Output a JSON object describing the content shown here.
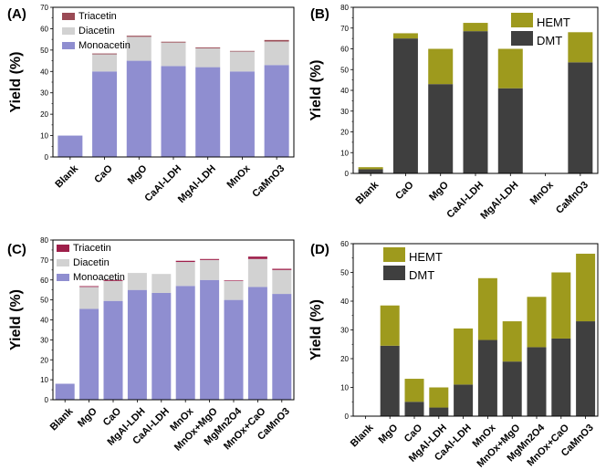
{
  "chart_data": [
    {
      "id": "A",
      "panel_label": "(A)",
      "type": "bar",
      "stacked": true,
      "ylabel": "Yield (%)",
      "ylim": [
        0,
        70
      ],
      "yticks": [
        0,
        10,
        20,
        30,
        40,
        50,
        60,
        70
      ],
      "categories": [
        "Blank",
        "CaO",
        "MgO",
        "CaAl-LDH",
        "MgAl-LDH",
        "MnOx",
        "CaMnO3"
      ],
      "legend_position": "top-left",
      "legend": [
        "Triacetin",
        "Diacetin",
        "Monoacetin"
      ],
      "series": [
        {
          "name": "Monoacetin",
          "color": "#8f8ed0",
          "values": [
            10,
            40,
            45,
            42.5,
            42,
            40,
            43
          ]
        },
        {
          "name": "Diacetin",
          "color": "#d2d2d2",
          "values": [
            0,
            8,
            11.2,
            11,
            8.8,
            9.3,
            11
          ]
        },
        {
          "name": "Triacetin",
          "color": "#9a4a55",
          "values": [
            0,
            0.4,
            0.5,
            0.4,
            0.4,
            0.3,
            0.7
          ]
        }
      ]
    },
    {
      "id": "B",
      "panel_label": "(B)",
      "type": "bar",
      "stacked": true,
      "ylabel": "Yield (%)",
      "ylim": [
        0,
        80
      ],
      "yticks": [
        0,
        10,
        20,
        30,
        40,
        50,
        60,
        70,
        80
      ],
      "categories": [
        "Blank",
        "CaO",
        "MgO",
        "CaAl-LDH",
        "MgAl-LDH",
        "MnOx",
        "CaMnO3"
      ],
      "legend_position": "top-right",
      "legend": [
        "HEMT",
        "DMT"
      ],
      "series": [
        {
          "name": "DMT",
          "color": "#3f3f3f",
          "values": [
            2,
            65,
            43,
            68.5,
            41,
            0,
            53.5
          ]
        },
        {
          "name": "HEMT",
          "color": "#9e9a1d",
          "values": [
            1,
            2.5,
            17,
            4,
            19,
            0,
            14.5
          ]
        }
      ]
    },
    {
      "id": "C",
      "panel_label": "(C)",
      "type": "bar",
      "stacked": true,
      "ylabel": "Yield (%)",
      "ylim": [
        0,
        80
      ],
      "yticks": [
        0,
        10,
        20,
        30,
        40,
        50,
        60,
        70,
        80
      ],
      "categories": [
        "Blank",
        "MgO",
        "CaO",
        "MgAl-LDH",
        "CaAl-LDH",
        "MnOx",
        "MnOx+MgO",
        "MgMn2O4",
        "MnOx+CaO",
        "CaMnO3"
      ],
      "legend_position": "top-left",
      "legend": [
        "Triacetin",
        "Diacetin",
        "Monoacetin"
      ],
      "series": [
        {
          "name": "Monoacetin",
          "color": "#8f8ed0",
          "values": [
            8,
            45.5,
            49.5,
            55,
            53.5,
            57,
            60,
            50,
            56.5,
            53
          ]
        },
        {
          "name": "Diacetin",
          "color": "#d2d2d2",
          "values": [
            0,
            11,
            10,
            8.5,
            9.5,
            12,
            10,
            9.5,
            14,
            12
          ]
        },
        {
          "name": "Triacetin",
          "color": "#9e1f4a",
          "values": [
            0,
            0.4,
            0.5,
            0,
            0,
            0.6,
            0.5,
            0.3,
            1.2,
            0.6
          ]
        }
      ]
    },
    {
      "id": "D",
      "panel_label": "(D)",
      "type": "bar",
      "stacked": true,
      "ylabel": "Yield (%)",
      "ylim": [
        0,
        60
      ],
      "yticks": [
        0,
        10,
        20,
        30,
        40,
        50,
        60
      ],
      "categories": [
        "Blank",
        "MgO",
        "CaO",
        "MgAl-LDH",
        "CaAl-LDH",
        "MnOx",
        "MnOx+MgO",
        "MgMn2O4",
        "MnOx+CaO",
        "CaMnO3"
      ],
      "legend_position": "top-left",
      "legend": [
        "HEMT",
        "DMT"
      ],
      "series": [
        {
          "name": "DMT",
          "color": "#3f3f3f",
          "values": [
            0,
            24.5,
            5,
            3,
            11,
            26.5,
            19,
            24,
            27,
            33
          ]
        },
        {
          "name": "HEMT",
          "color": "#9e9a1d",
          "values": [
            0,
            14,
            8,
            7,
            19.5,
            21.5,
            14,
            17.5,
            23,
            23.5
          ]
        }
      ]
    }
  ]
}
